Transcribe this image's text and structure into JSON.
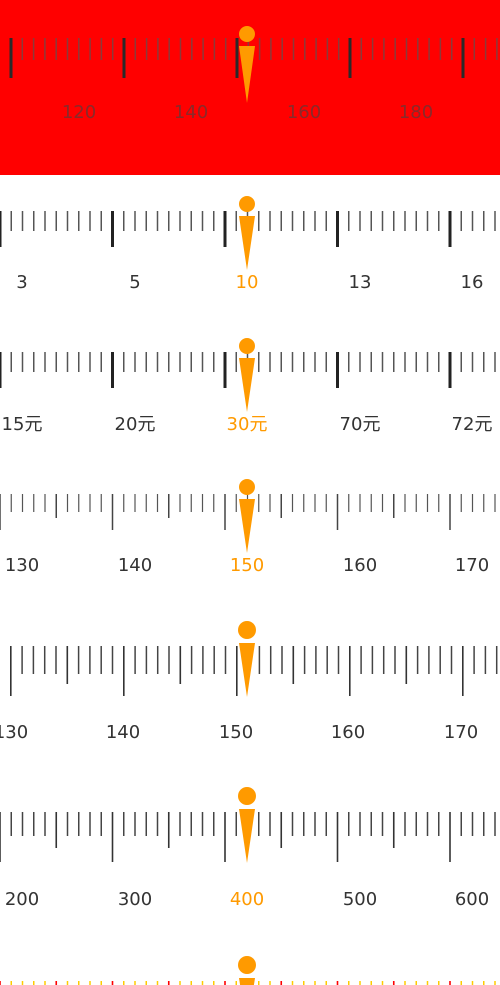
{
  "colors": {
    "indicator": "#ff9a00",
    "tick": "#333333",
    "label": "#333333",
    "highlight": "#ff9a00",
    "first_bg": "#ff0000",
    "last_tick_primary": "#ff0000",
    "last_tick_secondary": "#ffcc00"
  },
  "rulers": [
    {
      "name": "ruler-red",
      "labels": [
        "120",
        "140",
        "160",
        "180"
      ],
      "selected_label": null
    },
    {
      "name": "ruler-int-custom",
      "labels": [
        "3",
        "5",
        "10",
        "13",
        "16"
      ],
      "selected_label": "10"
    },
    {
      "name": "ruler-yuan",
      "labels": [
        "15元",
        "20元",
        "30元",
        "70元",
        "72元"
      ],
      "selected_label": "30元"
    },
    {
      "name": "ruler-thin",
      "labels": [
        "130",
        "140",
        "150",
        "160",
        "170"
      ],
      "selected_label": "150"
    },
    {
      "name": "ruler-dense",
      "labels": [
        "130",
        "140",
        "150",
        "160",
        "170"
      ],
      "selected_label": null
    },
    {
      "name": "ruler-hundreds",
      "labels": [
        "200",
        "300",
        "400",
        "500",
        "600"
      ],
      "selected_label": "400"
    },
    {
      "name": "ruler-colored",
      "labels": [],
      "selected_label": null
    }
  ]
}
